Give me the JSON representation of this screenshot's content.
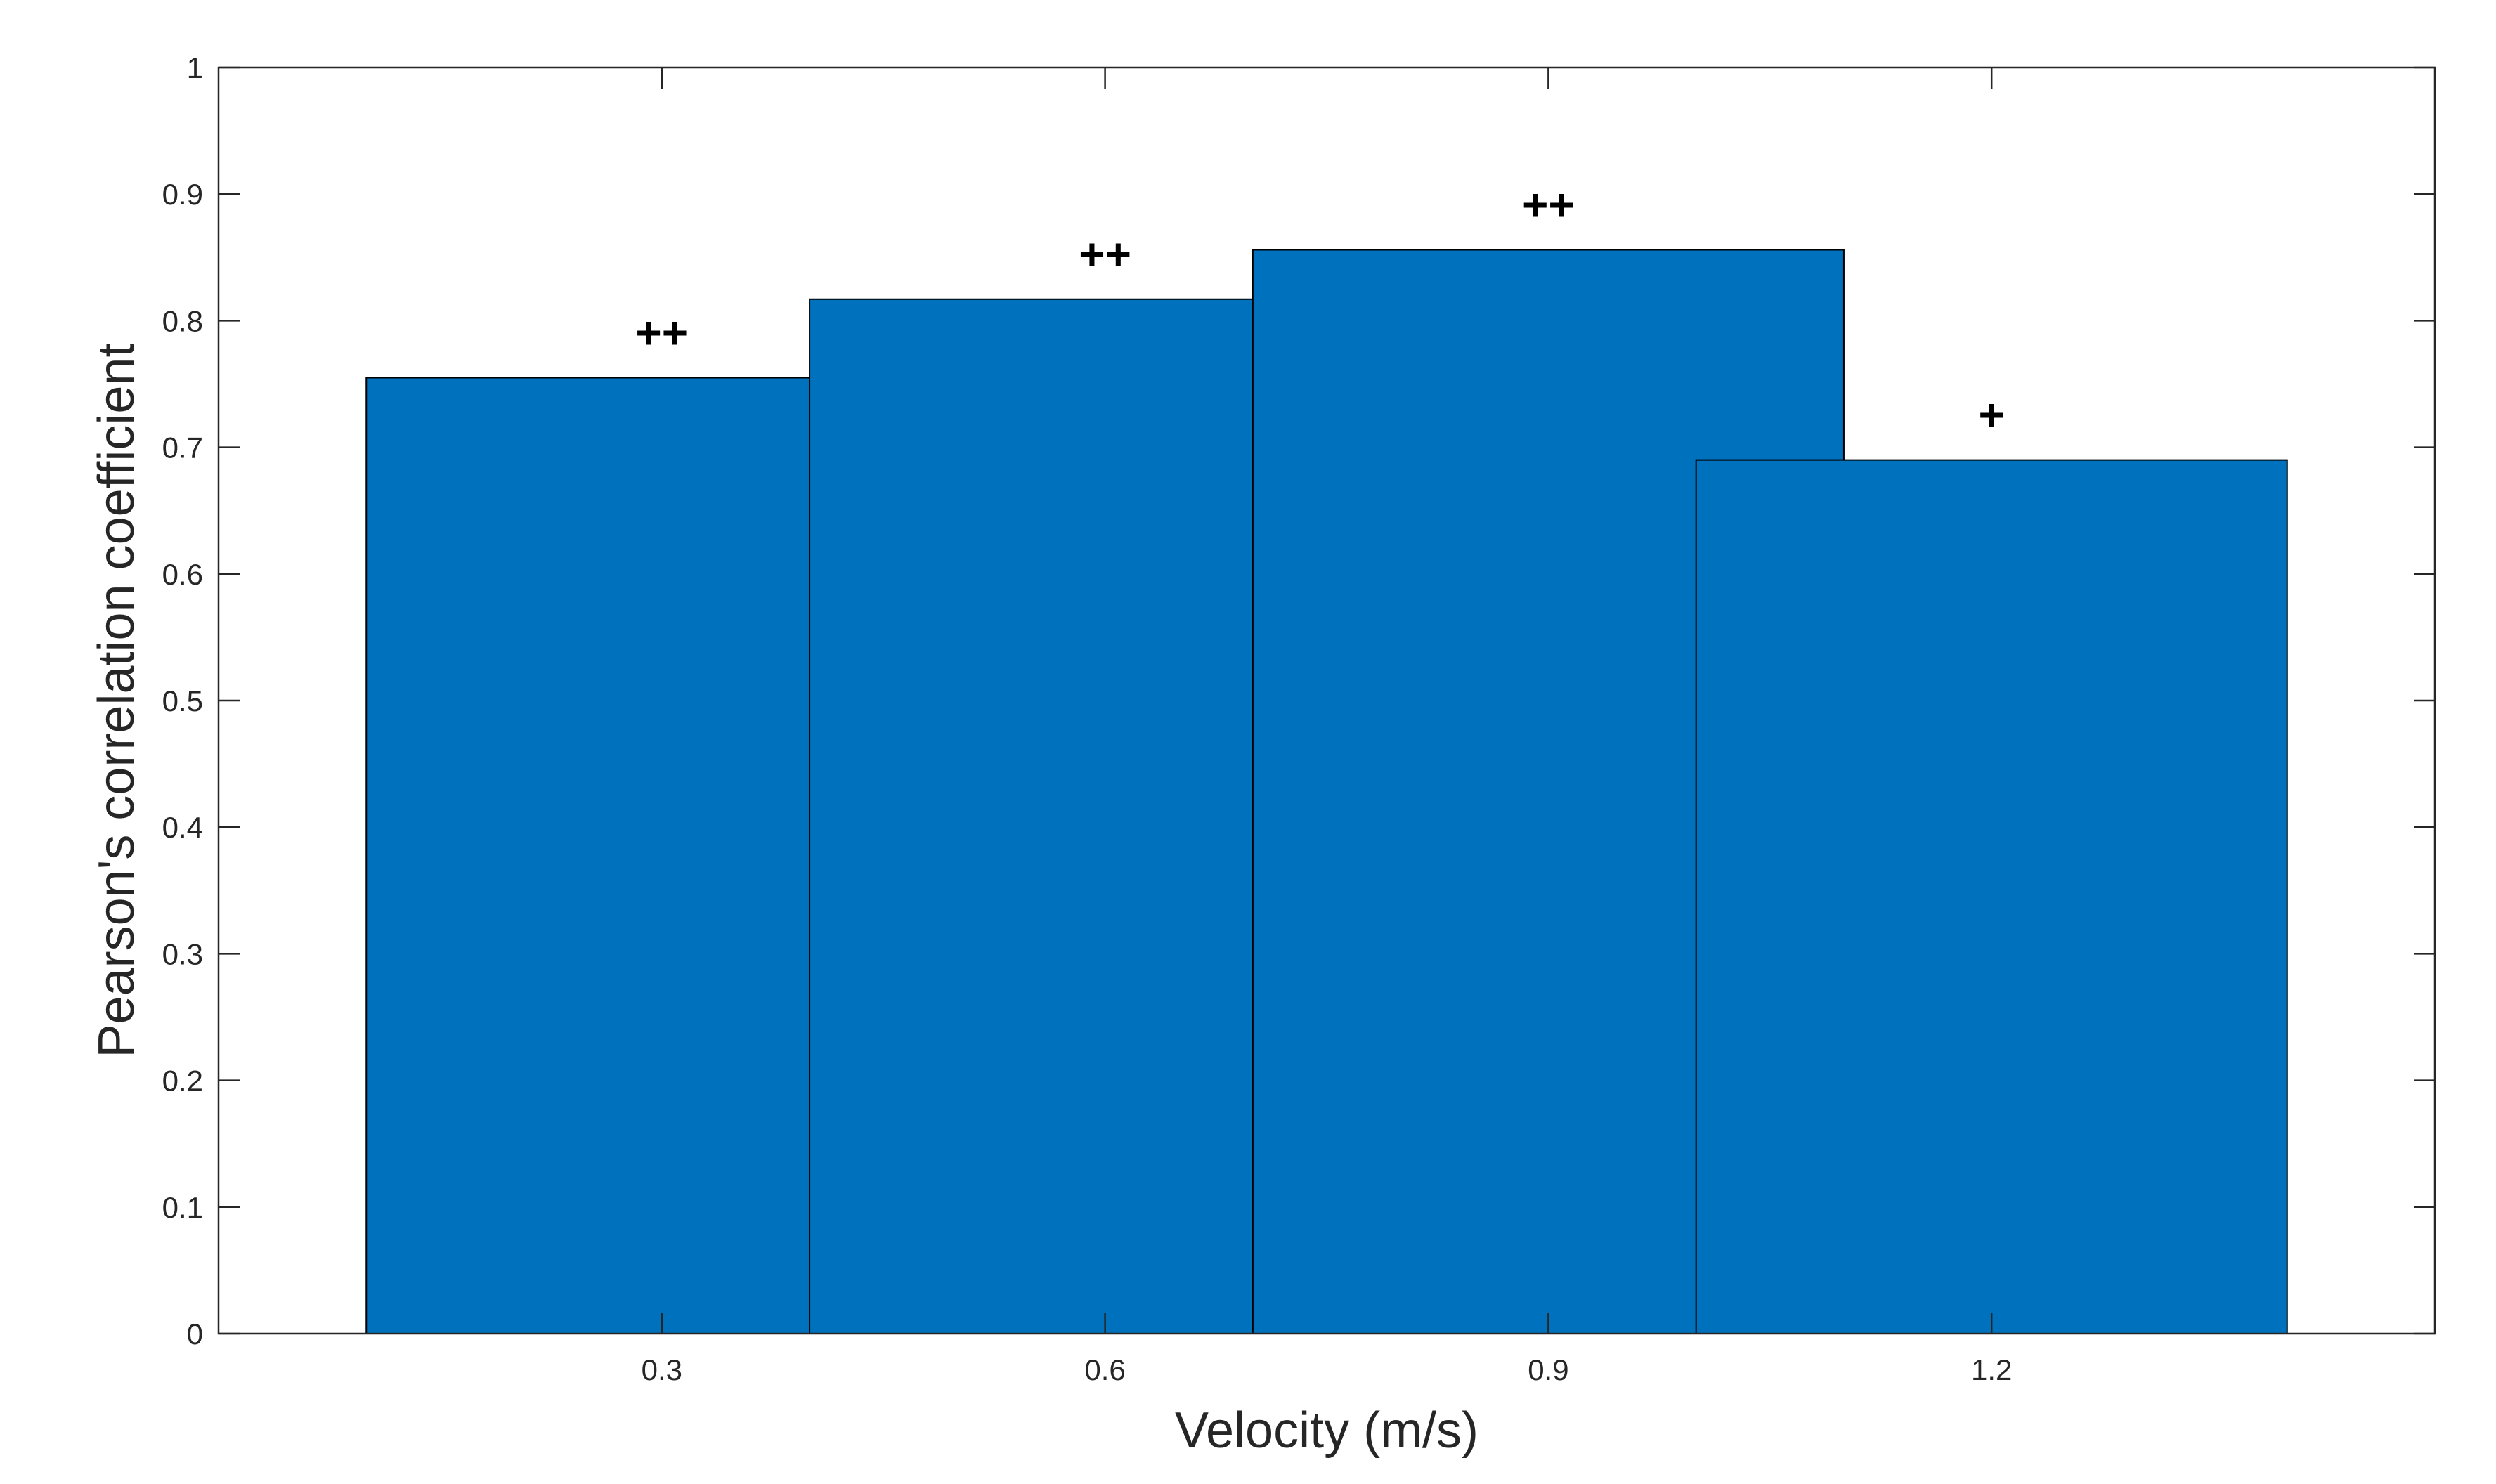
{
  "chart_data": {
    "type": "bar",
    "categories": [
      "0.3",
      "0.6",
      "0.9",
      "1.2"
    ],
    "values": [
      0.755,
      0.817,
      0.856,
      0.69
    ],
    "annotations": [
      "++",
      "++",
      "++",
      "+"
    ],
    "xlabel": "Velocity (m/s)",
    "ylabel": "Pearson's correlation coefficient",
    "ylim": [
      0,
      1
    ],
    "xlim": [
      0,
      1.5
    ],
    "yticks": [
      "0",
      "0.1",
      "0.2",
      "0.3",
      "0.4",
      "0.5",
      "0.6",
      "0.7",
      "0.8",
      "0.9",
      "1"
    ],
    "bar_color": "#0072BD",
    "grid": false,
    "legend": "none"
  }
}
